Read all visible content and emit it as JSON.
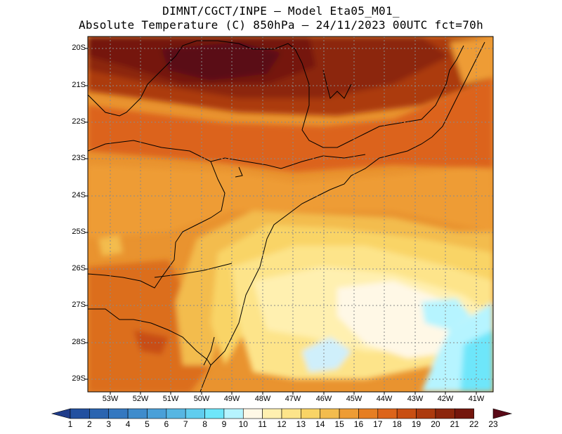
{
  "header": {
    "line1": "DIMNT/CGCT/INPE –  Model Eta05_M01_",
    "line2": "Absolute Temperature (C) 850hPa –  24/11/2023 00UTC fct=70h"
  },
  "map": {
    "lat_labels": [
      "20S",
      "21S",
      "22S",
      "23S",
      "24S",
      "25S",
      "26S",
      "27S",
      "28S",
      "29S"
    ],
    "lon_labels": [
      "53W",
      "52W",
      "51W",
      "50W",
      "49W",
      "48W",
      "47W",
      "46W",
      "45W",
      "44W",
      "43W",
      "42W",
      "41W"
    ],
    "grid": "dotted",
    "variable": "Absolute Temperature (C)",
    "level": "850hPa"
  },
  "colorbar": {
    "labels": [
      "1",
      "2",
      "3",
      "4",
      "5",
      "6",
      "7",
      "8",
      "9",
      "10",
      "11",
      "12",
      "13",
      "14",
      "15",
      "16",
      "17",
      "18",
      "19",
      "20",
      "21",
      "22",
      "23"
    ],
    "colors": [
      "#1f3c8a",
      "#2250a0",
      "#2a64b0",
      "#3478c0",
      "#3f8ccc",
      "#4aa0d8",
      "#56b6e2",
      "#60cdee",
      "#6ee6fa",
      "#b6f4ff",
      "#fff8e6",
      "#fff0b0",
      "#fde48a",
      "#f9d466",
      "#f3bc4e",
      "#ee9c34",
      "#e67e22",
      "#dc641a",
      "#c84e12",
      "#ac3a0e",
      "#8c260c",
      "#74160c",
      "#5a0a18"
    ]
  }
}
